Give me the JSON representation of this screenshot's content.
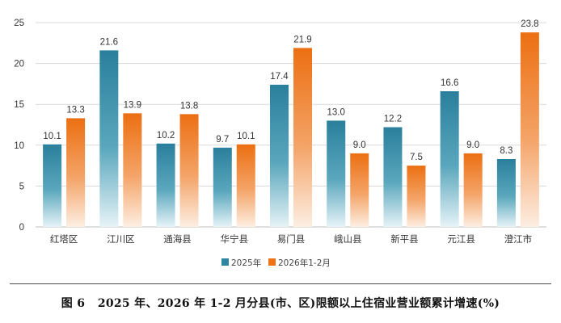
{
  "chart_data": {
    "type": "bar",
    "categories": [
      "红塔区",
      "江川区",
      "通海县",
      "华宁县",
      "易门县",
      "峨山县",
      "新平县",
      "元江县",
      "澄江市"
    ],
    "series": [
      {
        "name": "2025年",
        "values": [
          10.1,
          21.6,
          10.2,
          9.7,
          17.4,
          13.0,
          12.2,
          16.6,
          8.3
        ],
        "color": "#2e86a2"
      },
      {
        "name": "2026年1-2月",
        "values": [
          13.3,
          13.9,
          13.8,
          10.1,
          21.9,
          9.0,
          7.5,
          9.0,
          23.8
        ],
        "color": "#ee7417"
      }
    ],
    "value_labels": [
      [
        "10.1",
        "21.6",
        "10.2",
        "9.7",
        "17.4",
        "13.0",
        "12.2",
        "16.6",
        "8.3"
      ],
      [
        "13.3",
        "13.9",
        "13.8",
        "10.1",
        "21.9",
        "9.0",
        "7.5",
        "9.0",
        "23.8"
      ]
    ],
    "ylim": [
      0,
      25
    ],
    "yticks": [
      0,
      5,
      10,
      15,
      20,
      25
    ],
    "ytick_labels": [
      "0",
      "5",
      "10",
      "15",
      "20",
      "25"
    ],
    "grid": true,
    "legend_position": "bottom-center",
    "xlabel": "",
    "ylabel": "",
    "title": ""
  },
  "caption": {
    "figure_label": "图 6",
    "text": "2025 年、2026 年 1-2 月分县(市、区)限额以上住宿业营业额累计增速(%)"
  },
  "colors": {
    "teal": "#2e86a2",
    "orange": "#ee7417",
    "grid": "#d9d9d9",
    "axis": "#bfbfbf"
  }
}
